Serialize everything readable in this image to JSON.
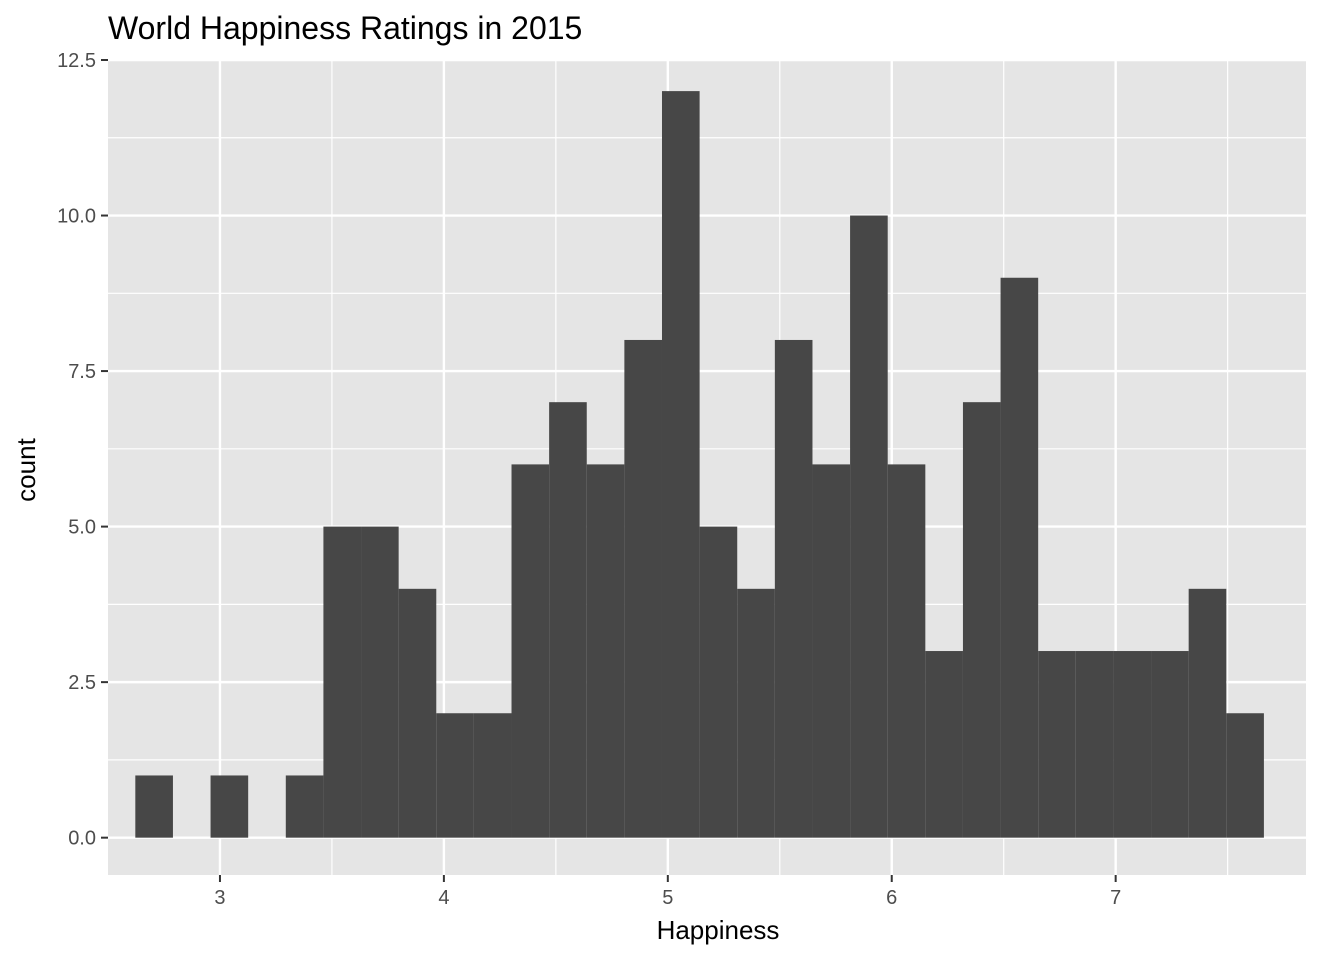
{
  "chart_data": {
    "type": "bar",
    "title": "World Happiness Ratings in 2015",
    "xlabel": "Happiness",
    "ylabel": "count",
    "xlim": [
      2.5,
      7.85
    ],
    "ylim": [
      -0.6,
      12.5
    ],
    "x_ticks": [
      3,
      4,
      5,
      6,
      7
    ],
    "y_ticks": [
      0.0,
      2.5,
      5.0,
      7.5,
      10.0,
      12.5
    ],
    "x_tick_labels": [
      "3",
      "4",
      "5",
      "6",
      "7"
    ],
    "y_tick_labels": [
      "0.0",
      "2.5",
      "5.0",
      "7.5",
      "10.0",
      "12.5"
    ],
    "bin_width": 0.168,
    "bin_centers": [
      2.706,
      2.874,
      3.042,
      3.21,
      3.378,
      3.546,
      3.714,
      3.882,
      4.05,
      4.218,
      4.386,
      4.554,
      4.722,
      4.89,
      5.058,
      5.226,
      5.394,
      5.562,
      5.73,
      5.898,
      6.066,
      6.234,
      6.402,
      6.57,
      6.738,
      6.906,
      7.074,
      7.242,
      7.41,
      7.578
    ],
    "values": [
      1,
      0,
      1,
      0,
      1,
      5,
      5,
      4,
      2,
      2,
      6,
      7,
      6,
      8,
      12,
      5,
      4,
      8,
      6,
      10,
      6,
      3,
      7,
      9,
      3,
      3,
      3,
      3,
      4,
      2
    ],
    "grid": true,
    "colors": {
      "panel": "#e5e5e5",
      "grid": "#ffffff",
      "bar": "#474747"
    }
  }
}
